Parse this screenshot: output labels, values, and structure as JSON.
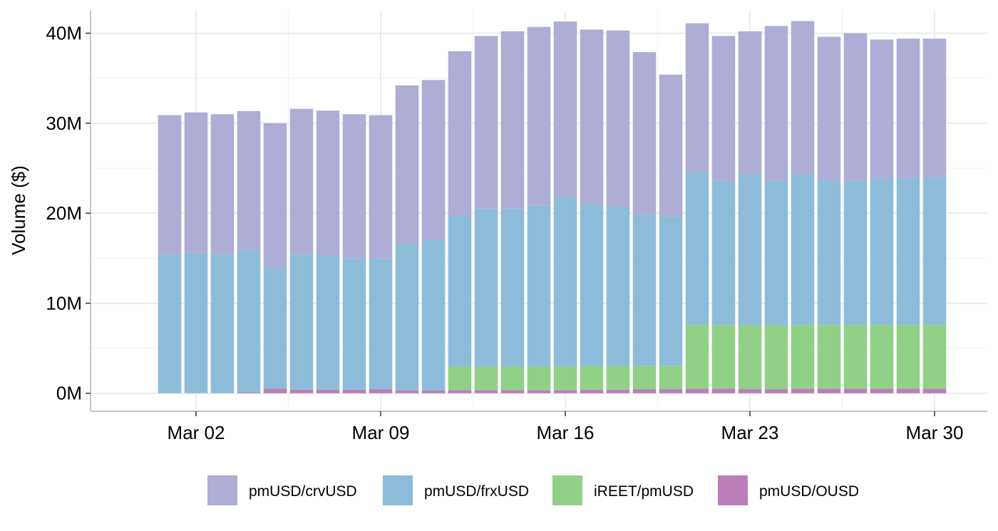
{
  "chart_data": {
    "type": "bar",
    "stacked": true,
    "title": "",
    "xlabel": "",
    "ylabel": "Volume ($)",
    "ylim": [
      -2000000,
      42500000
    ],
    "y_ticks": [
      0,
      10000000,
      20000000,
      30000000,
      40000000
    ],
    "y_tick_labels": [
      "0M",
      "10M",
      "20M",
      "30M",
      "40M"
    ],
    "x_tick_labels": [
      "Mar 02",
      "Mar 09",
      "Mar 16",
      "Mar 23",
      "Mar 30"
    ],
    "x_tick_dates": [
      "2025-03-02",
      "2025-03-09",
      "2025-03-16",
      "2025-03-23",
      "2025-03-30"
    ],
    "x_date_range": [
      "2025-02-26",
      "2025-04-01"
    ],
    "grid": true,
    "legend_position": "bottom",
    "categories": [
      "2025-03-01",
      "2025-03-02",
      "2025-03-03",
      "2025-03-04",
      "2025-03-05",
      "2025-03-06",
      "2025-03-07",
      "2025-03-08",
      "2025-03-09",
      "2025-03-10",
      "2025-03-11",
      "2025-03-12",
      "2025-03-13",
      "2025-03-14",
      "2025-03-15",
      "2025-03-16",
      "2025-03-17",
      "2025-03-18",
      "2025-03-19",
      "2025-03-20",
      "2025-03-21",
      "2025-03-22",
      "2025-03-23",
      "2025-03-24",
      "2025-03-25",
      "2025-03-26",
      "2025-03-27",
      "2025-03-28",
      "2025-03-29",
      "2025-03-30"
    ],
    "series": [
      {
        "name": "pmUSD/OUSD",
        "color": "#BA7EBA",
        "values": [
          0,
          0,
          0,
          100000,
          500000,
          400000,
          400000,
          400000,
          450000,
          300000,
          300000,
          350000,
          350000,
          350000,
          350000,
          350000,
          400000,
          400000,
          450000,
          450000,
          500000,
          500000,
          450000,
          450000,
          500000,
          500000,
          500000,
          500000,
          500000,
          500000
        ]
      },
      {
        "name": "iREET/pmUSD",
        "color": "#91D087",
        "values": [
          0,
          0,
          0,
          0,
          0,
          0,
          0,
          0,
          0,
          0,
          0,
          2600000,
          2600000,
          2600000,
          2600000,
          2600000,
          2600000,
          2600000,
          2600000,
          2600000,
          7100000,
          7100000,
          7100000,
          7100000,
          7100000,
          7100000,
          7100000,
          7100000,
          7100000,
          7100000
        ]
      },
      {
        "name": "pmUSD/frxUSD",
        "color": "#8DBCDA",
        "values": [
          15400000,
          15600000,
          15400000,
          15850000,
          13500000,
          15000000,
          14900000,
          14600000,
          14550000,
          16300000,
          16750000,
          16750000,
          17550000,
          17550000,
          17950000,
          18850000,
          18000000,
          17700000,
          16750000,
          16550000,
          17000000,
          16000000,
          16750000,
          16050000,
          16650000,
          16100000,
          16000000,
          16300000,
          16300000,
          16400000
        ]
      },
      {
        "name": "pmUSD/crvUSD",
        "color": "#AEADD5",
        "values": [
          15500000,
          15600000,
          15600000,
          15400000,
          16000000,
          16200000,
          16100000,
          16000000,
          15900000,
          17600000,
          17750000,
          18300000,
          19200000,
          19700000,
          19800000,
          19500000,
          19400000,
          19600000,
          18100000,
          15800000,
          16500000,
          16100000,
          15900000,
          17200000,
          17100000,
          15900000,
          16400000,
          15400000,
          15500000,
          15400000
        ]
      }
    ]
  }
}
